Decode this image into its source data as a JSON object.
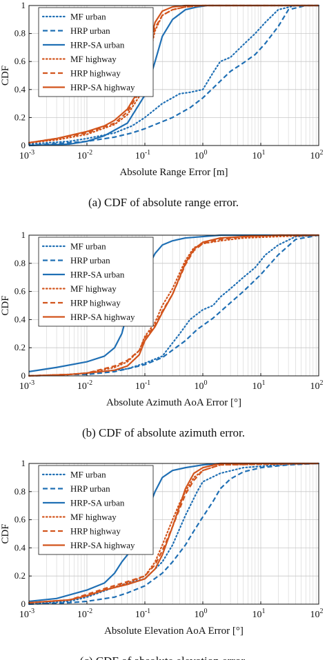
{
  "x_ticks": [
    "10",
    "10",
    "10",
    "10",
    "10",
    "10"
  ],
  "x_tick_exponents": [
    "-3",
    "-2",
    "-1",
    "0",
    "1",
    "2"
  ],
  "y_ticks": [
    "0",
    "0.2",
    "0.4",
    "0.6",
    "0.8",
    "1"
  ],
  "colors": {
    "urban": "#1f6fb4",
    "highway": "#d2541c",
    "grid": "#c8c8c8"
  },
  "chart_data": [
    {
      "type": "line",
      "scale_x": "log",
      "xlim": [
        0.001,
        100
      ],
      "ylim": [
        0,
        1
      ],
      "grid": true,
      "legend_position": "top-left",
      "xlabel": "Absolute Range Error [m]",
      "ylabel": "CDF",
      "caption": "(a) CDF of absolute range error.",
      "series": [
        {
          "name": "MF urban",
          "color": "#1f6fb4",
          "dash": "dotted",
          "x": [
            0.001,
            0.005,
            0.01,
            0.03,
            0.06,
            0.1,
            0.2,
            0.4,
            0.6,
            1,
            1.5,
            2,
            3,
            5,
            8,
            12,
            20,
            40,
            100
          ],
          "y": [
            0.01,
            0.03,
            0.05,
            0.09,
            0.14,
            0.2,
            0.3,
            0.37,
            0.38,
            0.4,
            0.52,
            0.6,
            0.63,
            0.72,
            0.8,
            0.88,
            0.97,
            1.0,
            1.0
          ]
        },
        {
          "name": "HRP urban",
          "color": "#1f6fb4",
          "dash": "dashed",
          "x": [
            0.001,
            0.005,
            0.01,
            0.03,
            0.06,
            0.1,
            0.3,
            0.6,
            1,
            1.5,
            2,
            3,
            5,
            8,
            12,
            20,
            30,
            60,
            100
          ],
          "y": [
            0.0,
            0.02,
            0.03,
            0.06,
            0.09,
            0.12,
            0.2,
            0.27,
            0.34,
            0.41,
            0.46,
            0.53,
            0.59,
            0.65,
            0.73,
            0.85,
            0.97,
            1.0,
            1.0
          ]
        },
        {
          "name": "HRP-SA urban",
          "color": "#1f6fb4",
          "dash": "solid",
          "x": [
            0.001,
            0.005,
            0.01,
            0.02,
            0.05,
            0.1,
            0.15,
            0.2,
            0.3,
            0.5,
            0.8,
            1.2,
            2,
            100
          ],
          "y": [
            0.0,
            0.01,
            0.03,
            0.07,
            0.16,
            0.36,
            0.6,
            0.78,
            0.9,
            0.97,
            0.99,
            1.0,
            1.0,
            1.0
          ]
        },
        {
          "name": "MF highway",
          "color": "#d2541c",
          "dash": "dotted",
          "x": [
            0.001,
            0.003,
            0.01,
            0.03,
            0.05,
            0.08,
            0.1,
            0.12,
            0.15,
            0.2,
            0.3,
            0.5,
            1,
            100
          ],
          "y": [
            0.02,
            0.04,
            0.08,
            0.15,
            0.22,
            0.35,
            0.5,
            0.65,
            0.82,
            0.93,
            0.97,
            0.99,
            1.0,
            1.0
          ]
        },
        {
          "name": "HRP highway",
          "color": "#d2541c",
          "dash": "dashed",
          "x": [
            0.001,
            0.003,
            0.01,
            0.03,
            0.05,
            0.08,
            0.1,
            0.12,
            0.15,
            0.2,
            0.3,
            0.5,
            1,
            100
          ],
          "y": [
            0.02,
            0.05,
            0.09,
            0.16,
            0.24,
            0.38,
            0.52,
            0.67,
            0.84,
            0.93,
            0.97,
            0.99,
            1.0,
            1.0
          ]
        },
        {
          "name": "HRP-SA highway",
          "color": "#d2541c",
          "dash": "solid",
          "x": [
            0.001,
            0.003,
            0.01,
            0.02,
            0.03,
            0.05,
            0.08,
            0.1,
            0.12,
            0.15,
            0.2,
            0.3,
            0.5,
            1,
            100
          ],
          "y": [
            0.02,
            0.05,
            0.1,
            0.14,
            0.18,
            0.26,
            0.4,
            0.55,
            0.72,
            0.88,
            0.96,
            0.99,
            1.0,
            1.0,
            1.0
          ]
        }
      ]
    },
    {
      "type": "line",
      "scale_x": "log",
      "xlim": [
        0.001,
        100
      ],
      "ylim": [
        0,
        1
      ],
      "grid": true,
      "legend_position": "top-left",
      "xlabel": "Absolute Azimuth AoA Error [°]",
      "ylabel": "CDF",
      "caption": "(b) CDF of absolute azimuth error.",
      "series": [
        {
          "name": "MF urban",
          "color": "#1f6fb4",
          "dash": "dotted",
          "x": [
            0.001,
            0.005,
            0.01,
            0.03,
            0.05,
            0.1,
            0.2,
            0.4,
            0.6,
            1,
            1.5,
            2,
            3,
            5,
            8,
            12,
            20,
            40,
            100
          ],
          "y": [
            0.0,
            0.01,
            0.02,
            0.04,
            0.05,
            0.09,
            0.14,
            0.3,
            0.4,
            0.47,
            0.5,
            0.56,
            0.62,
            0.7,
            0.77,
            0.86,
            0.93,
            0.99,
            1.0
          ]
        },
        {
          "name": "HRP urban",
          "color": "#1f6fb4",
          "dash": "dashed",
          "x": [
            0.001,
            0.005,
            0.01,
            0.03,
            0.05,
            0.1,
            0.2,
            0.5,
            0.8,
            1.5,
            3,
            5,
            10,
            20,
            40,
            100
          ],
          "y": [
            0.0,
            0.01,
            0.01,
            0.03,
            0.05,
            0.08,
            0.13,
            0.25,
            0.33,
            0.41,
            0.52,
            0.6,
            0.72,
            0.86,
            0.97,
            1.0
          ]
        },
        {
          "name": "HRP-SA urban",
          "color": "#1f6fb4",
          "dash": "solid",
          "x": [
            0.001,
            0.003,
            0.01,
            0.02,
            0.03,
            0.04,
            0.05,
            0.07,
            0.1,
            0.15,
            0.2,
            0.3,
            0.5,
            1,
            2,
            100
          ],
          "y": [
            0.03,
            0.06,
            0.1,
            0.14,
            0.2,
            0.3,
            0.45,
            0.6,
            0.73,
            0.87,
            0.93,
            0.96,
            0.98,
            0.99,
            1.0,
            1.0
          ]
        },
        {
          "name": "MF highway",
          "color": "#d2541c",
          "dash": "dotted",
          "x": [
            0.001,
            0.005,
            0.01,
            0.03,
            0.05,
            0.08,
            0.1,
            0.15,
            0.2,
            0.3,
            0.5,
            0.7,
            1,
            2,
            5,
            20,
            100
          ],
          "y": [
            0.0,
            0.01,
            0.02,
            0.06,
            0.1,
            0.18,
            0.28,
            0.38,
            0.5,
            0.62,
            0.82,
            0.91,
            0.94,
            0.96,
            0.98,
            0.99,
            1.0
          ]
        },
        {
          "name": "HRP highway",
          "color": "#d2541c",
          "dash": "dashed",
          "x": [
            0.001,
            0.005,
            0.01,
            0.03,
            0.05,
            0.08,
            0.1,
            0.15,
            0.2,
            0.3,
            0.5,
            0.7,
            1,
            2,
            5,
            20,
            100
          ],
          "y": [
            0.0,
            0.01,
            0.02,
            0.07,
            0.11,
            0.18,
            0.27,
            0.36,
            0.46,
            0.58,
            0.79,
            0.89,
            0.94,
            0.97,
            0.99,
            1.0,
            1.0
          ]
        },
        {
          "name": "HRP-SA highway",
          "color": "#d2541c",
          "dash": "solid",
          "x": [
            0.001,
            0.005,
            0.01,
            0.03,
            0.05,
            0.08,
            0.1,
            0.15,
            0.2,
            0.3,
            0.5,
            0.7,
            1,
            2,
            5,
            20,
            100
          ],
          "y": [
            0.0,
            0.01,
            0.02,
            0.04,
            0.07,
            0.15,
            0.25,
            0.35,
            0.45,
            0.58,
            0.8,
            0.9,
            0.95,
            0.98,
            0.99,
            1.0,
            1.0
          ]
        }
      ]
    },
    {
      "type": "line",
      "scale_x": "log",
      "xlim": [
        0.001,
        100
      ],
      "ylim": [
        0,
        1
      ],
      "grid": true,
      "legend_position": "top-left",
      "xlabel": "Absolute Elevation AoA Error [°]",
      "ylabel": "CDF",
      "caption": "(c) CDF of absolute elevation error.",
      "series": [
        {
          "name": "MF urban",
          "color": "#1f6fb4",
          "dash": "dotted",
          "x": [
            0.001,
            0.005,
            0.01,
            0.03,
            0.05,
            0.1,
            0.2,
            0.3,
            0.5,
            0.8,
            1,
            2,
            5,
            20,
            100
          ],
          "y": [
            0.0,
            0.02,
            0.05,
            0.12,
            0.15,
            0.18,
            0.3,
            0.42,
            0.63,
            0.8,
            0.87,
            0.93,
            0.97,
            0.99,
            1.0
          ]
        },
        {
          "name": "HRP urban",
          "color": "#1f6fb4",
          "dash": "dashed",
          "x": [
            0.001,
            0.005,
            0.01,
            0.03,
            0.05,
            0.1,
            0.2,
            0.3,
            0.5,
            0.7,
            1,
            1.5,
            2,
            3,
            5,
            10,
            30,
            100
          ],
          "y": [
            0.0,
            0.01,
            0.02,
            0.05,
            0.08,
            0.13,
            0.22,
            0.3,
            0.42,
            0.52,
            0.62,
            0.73,
            0.82,
            0.89,
            0.94,
            0.97,
            0.99,
            1.0
          ]
        },
        {
          "name": "HRP-SA urban",
          "color": "#1f6fb4",
          "dash": "solid",
          "x": [
            0.001,
            0.003,
            0.01,
            0.02,
            0.03,
            0.04,
            0.05,
            0.06,
            0.08,
            0.1,
            0.12,
            0.15,
            0.2,
            0.3,
            0.5,
            1,
            2,
            100
          ],
          "y": [
            0.02,
            0.04,
            0.1,
            0.15,
            0.22,
            0.3,
            0.35,
            0.4,
            0.5,
            0.6,
            0.7,
            0.8,
            0.9,
            0.95,
            0.97,
            0.99,
            1.0,
            1.0
          ]
        },
        {
          "name": "MF highway",
          "color": "#d2541c",
          "dash": "dotted",
          "x": [
            0.001,
            0.005,
            0.01,
            0.02,
            0.05,
            0.1,
            0.15,
            0.2,
            0.3,
            0.4,
            0.5,
            0.7,
            1,
            2,
            100
          ],
          "y": [
            0.01,
            0.03,
            0.06,
            0.1,
            0.15,
            0.2,
            0.3,
            0.42,
            0.6,
            0.72,
            0.8,
            0.9,
            0.95,
            0.99,
            1.0
          ]
        },
        {
          "name": "HRP highway",
          "color": "#d2541c",
          "dash": "dashed",
          "x": [
            0.001,
            0.005,
            0.01,
            0.02,
            0.05,
            0.1,
            0.15,
            0.2,
            0.3,
            0.4,
            0.5,
            0.7,
            1,
            2,
            100
          ],
          "y": [
            0.01,
            0.03,
            0.07,
            0.11,
            0.16,
            0.2,
            0.28,
            0.38,
            0.55,
            0.68,
            0.78,
            0.88,
            0.95,
            0.99,
            1.0
          ]
        },
        {
          "name": "HRP-SA highway",
          "color": "#d2541c",
          "dash": "solid",
          "x": [
            0.001,
            0.005,
            0.01,
            0.02,
            0.05,
            0.1,
            0.15,
            0.2,
            0.3,
            0.4,
            0.5,
            0.7,
            1,
            2,
            100
          ],
          "y": [
            0.01,
            0.03,
            0.06,
            0.1,
            0.14,
            0.18,
            0.25,
            0.35,
            0.55,
            0.7,
            0.82,
            0.93,
            0.97,
            1.0,
            1.0
          ]
        }
      ]
    }
  ]
}
